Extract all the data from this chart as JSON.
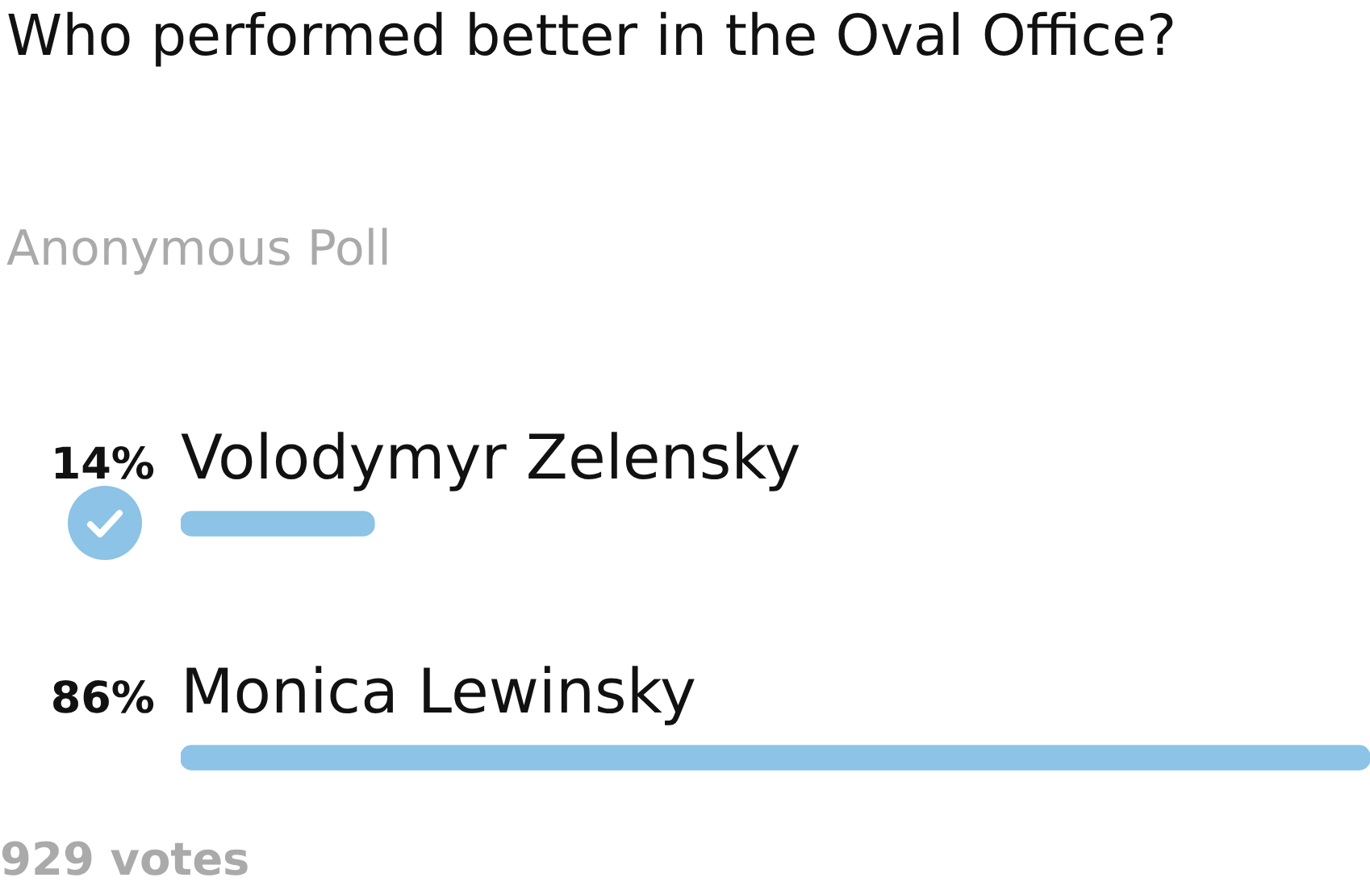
{
  "chart_data": {
    "type": "bar",
    "orientation": "horizontal",
    "title": "Who performed better in the Oval Office?",
    "subtitle": "Anonymous Poll",
    "categories": [
      "Volodymyr Zelensky",
      "Monica Lewinsky"
    ],
    "values": [
      14,
      86
    ],
    "value_labels": [
      "14%",
      "86%"
    ],
    "color": "#8cc3e6",
    "annotations": [
      "929 votes"
    ]
  }
}
